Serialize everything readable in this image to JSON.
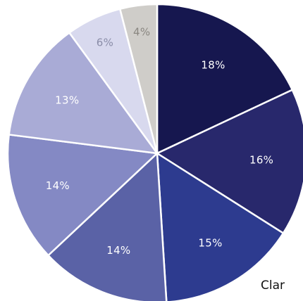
{
  "chart_data": {
    "type": "pie",
    "start_angle_deg": 0,
    "direction": "clockwise",
    "slices": [
      {
        "label": "18%",
        "value": 18,
        "color": "#16174f",
        "label_color": "#ffffff"
      },
      {
        "label": "16%",
        "value": 16,
        "color": "#28286c",
        "label_color": "#ffffff"
      },
      {
        "label": "15%",
        "value": 15,
        "color": "#2d3b8f",
        "label_color": "#ffffff"
      },
      {
        "label": "14%",
        "value": 14,
        "color": "#5a62a6",
        "label_color": "#ffffff"
      },
      {
        "label": "14%",
        "value": 14,
        "color": "#8489c4",
        "label_color": "#ffffff"
      },
      {
        "label": "13%",
        "value": 13,
        "color": "#a9abd6",
        "label_color": "#ffffff"
      },
      {
        "label": "6%",
        "value": 6,
        "color": "#d8d9ee",
        "label_color": "#8a8da8"
      },
      {
        "label": "4%",
        "value": 4,
        "color": "#cfcdc9",
        "label_color": "#8a8781"
      }
    ]
  },
  "outside_text": "Clar"
}
